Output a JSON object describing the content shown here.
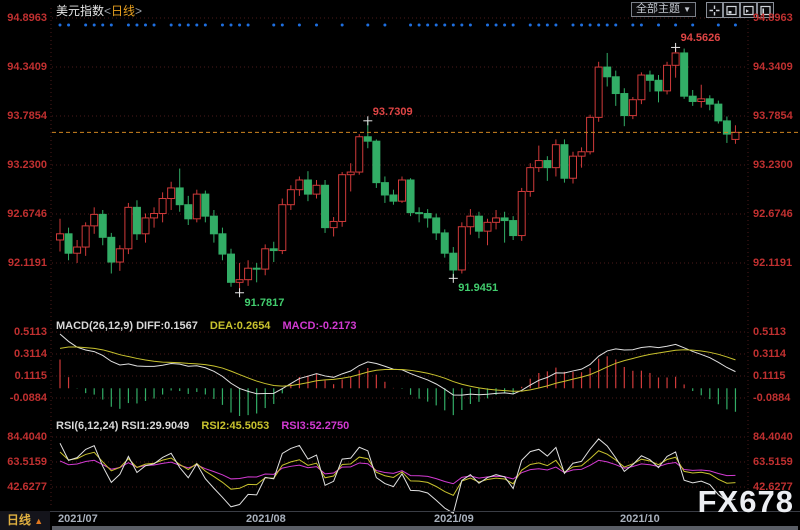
{
  "title": {
    "symbol": "美元指数",
    "bracket_open": "<",
    "period": "日线",
    "bracket_close": ">"
  },
  "toolbar": {
    "theme_label": "全部主题",
    "caret": "▼"
  },
  "macd_header": {
    "left": "MACD(26,12,9) DIFF:0.1567",
    "dea": "DEA:0.2654",
    "macd": "MACD:-0.2173"
  },
  "rsi_header": {
    "left": "RSI(6,12,24) RSI1:29.9049",
    "rsi2": "RSI2:45.5053",
    "rsi3": "RSI3:52.2750"
  },
  "bottom": {
    "tab": "日线",
    "tab_arrow": "▲",
    "dates": [
      "2021/07",
      "2021/08",
      "2021/09",
      "2021/10"
    ]
  },
  "watermark": "FX678",
  "colors": {
    "up": "#d03a3a",
    "down": "#32ad66",
    "axis_red": "#c03030",
    "grid": "#4b1a1a",
    "annotation_up": "#e04545",
    "annotation_down": "#42cd6e",
    "white_line": "#e0e0e0",
    "yellow_line": "#c8c22e",
    "magenta_line": "#d23ad2",
    "last_price_line": "#cd8420",
    "event_dot": "#1e6fe0",
    "cross": "#e8e8e8"
  },
  "chart_data": {
    "type": "candlestick",
    "symbol": "美元指数",
    "period": "日线",
    "title": "美元指数<日线>",
    "price_axis_labels": [
      "94.8963",
      "94.3409",
      "93.7854",
      "93.2300",
      "92.6746",
      "92.1191"
    ],
    "macd_axis_labels": [
      "0.5113",
      "0.3114",
      "0.1115",
      "-0.0884"
    ],
    "rsi_axis_labels": [
      "84.4040",
      "63.5159",
      "42.6277"
    ],
    "last_price": 93.6,
    "indicator_params": {
      "macd": [
        26,
        12,
        9
      ],
      "rsi": [
        6,
        12,
        24
      ]
    },
    "indicator_display": {
      "diff": 0.1567,
      "dea": 0.2654,
      "macd": -0.2173,
      "rsi1": 29.9049,
      "rsi2": 45.5053,
      "rsi3": 52.275
    },
    "annotations": [
      {
        "index": 21,
        "kind": "low",
        "label": "91.7817",
        "price": 91.7817
      },
      {
        "index": 36,
        "kind": "high",
        "label": "93.7309",
        "price": 93.7309
      },
      {
        "index": 46,
        "kind": "low",
        "label": "91.9451",
        "price": 91.9451
      },
      {
        "index": 72,
        "kind": "high",
        "label": "94.5626",
        "price": 94.5626
      }
    ],
    "months": [
      {
        "label": "2021/07",
        "index": 0
      },
      {
        "label": "2021/08",
        "index": 22
      },
      {
        "label": "2021/09",
        "index": 44
      },
      {
        "label": "2021/10",
        "index": 66
      }
    ],
    "event_dot_indices": [
      0,
      1,
      3,
      4,
      5,
      6,
      8,
      9,
      10,
      11,
      13,
      14,
      15,
      16,
      17,
      19,
      20,
      21,
      22,
      25,
      26,
      28,
      30,
      33,
      36,
      38,
      41,
      42,
      43,
      44,
      45,
      46,
      47,
      48,
      50,
      51,
      52,
      53,
      55,
      56,
      57,
      58,
      60,
      61,
      62,
      63,
      64,
      65,
      67,
      68,
      70,
      72,
      74,
      77,
      79
    ],
    "candles": [
      [
        92.38,
        92.62,
        92.25,
        92.45
      ],
      [
        92.45,
        92.52,
        92.15,
        92.23
      ],
      [
        92.23,
        92.38,
        92.12,
        92.3
      ],
      [
        92.3,
        92.58,
        92.2,
        92.54
      ],
      [
        92.54,
        92.75,
        92.45,
        92.67
      ],
      [
        92.67,
        92.72,
        92.32,
        92.41
      ],
      [
        92.41,
        92.46,
        92.0,
        92.13
      ],
      [
        92.13,
        92.32,
        92.03,
        92.28
      ],
      [
        92.28,
        92.8,
        92.22,
        92.75
      ],
      [
        92.75,
        92.83,
        92.38,
        92.45
      ],
      [
        92.45,
        92.68,
        92.35,
        92.63
      ],
      [
        92.63,
        92.75,
        92.52,
        92.68
      ],
      [
        92.68,
        92.92,
        92.58,
        92.85
      ],
      [
        92.85,
        93.04,
        92.72,
        92.97
      ],
      [
        92.97,
        93.19,
        92.7,
        92.78
      ],
      [
        92.78,
        92.88,
        92.55,
        92.62
      ],
      [
        92.62,
        92.95,
        92.58,
        92.9
      ],
      [
        92.9,
        92.94,
        92.58,
        92.65
      ],
      [
        92.65,
        92.72,
        92.35,
        92.45
      ],
      [
        92.45,
        92.52,
        92.15,
        92.22
      ],
      [
        92.22,
        92.28,
        91.85,
        91.9
      ],
      [
        91.9,
        92.12,
        91.7817,
        91.93
      ],
      [
        91.93,
        92.15,
        91.86,
        92.06
      ],
      [
        92.06,
        92.12,
        91.9,
        92.05
      ],
      [
        92.05,
        92.33,
        91.98,
        92.28
      ],
      [
        92.28,
        92.36,
        92.13,
        92.26
      ],
      [
        92.26,
        92.85,
        92.22,
        92.78
      ],
      [
        92.78,
        93.0,
        92.72,
        92.95
      ],
      [
        92.95,
        93.1,
        92.88,
        93.06
      ],
      [
        93.06,
        93.16,
        92.82,
        92.9
      ],
      [
        92.9,
        93.06,
        92.85,
        93.0
      ],
      [
        93.0,
        93.06,
        92.46,
        92.52
      ],
      [
        92.52,
        92.64,
        92.42,
        92.59
      ],
      [
        92.59,
        93.15,
        92.53,
        93.12
      ],
      [
        93.12,
        93.25,
        92.93,
        93.15
      ],
      [
        93.15,
        93.58,
        93.12,
        93.55
      ],
      [
        93.55,
        93.7309,
        93.42,
        93.5
      ],
      [
        93.5,
        93.52,
        92.97,
        93.03
      ],
      [
        93.03,
        93.1,
        92.8,
        92.89
      ],
      [
        92.89,
        92.95,
        92.78,
        92.82
      ],
      [
        92.82,
        93.1,
        92.8,
        93.06
      ],
      [
        93.06,
        93.08,
        92.65,
        92.69
      ],
      [
        92.69,
        92.75,
        92.58,
        92.68
      ],
      [
        92.68,
        92.73,
        92.52,
        92.63
      ],
      [
        92.63,
        92.68,
        92.38,
        92.46
      ],
      [
        92.46,
        92.5,
        92.18,
        92.23
      ],
      [
        92.23,
        92.3,
        91.9451,
        92.04
      ],
      [
        92.04,
        92.58,
        92.0,
        92.53
      ],
      [
        92.53,
        92.73,
        92.44,
        92.65
      ],
      [
        92.65,
        92.7,
        92.4,
        92.48
      ],
      [
        92.48,
        92.62,
        92.32,
        92.58
      ],
      [
        92.58,
        92.72,
        92.5,
        92.63
      ],
      [
        92.63,
        92.7,
        92.35,
        92.6
      ],
      [
        92.6,
        92.65,
        92.38,
        92.43
      ],
      [
        92.43,
        92.97,
        92.37,
        92.93
      ],
      [
        92.93,
        93.25,
        92.87,
        93.2
      ],
      [
        93.2,
        93.45,
        93.15,
        93.28
      ],
      [
        93.28,
        93.33,
        93.05,
        93.2
      ],
      [
        93.2,
        93.52,
        93.1,
        93.46
      ],
      [
        93.46,
        93.52,
        93.03,
        93.08
      ],
      [
        93.08,
        93.38,
        93.02,
        93.33
      ],
      [
        93.33,
        93.43,
        93.2,
        93.38
      ],
      [
        93.38,
        93.8,
        93.35,
        93.77
      ],
      [
        93.77,
        94.4,
        93.72,
        94.34
      ],
      [
        94.34,
        94.5,
        94.12,
        94.23
      ],
      [
        94.23,
        94.3,
        93.9,
        94.04
      ],
      [
        94.04,
        94.1,
        93.67,
        93.79
      ],
      [
        93.79,
        94.0,
        93.75,
        93.97
      ],
      [
        93.97,
        94.28,
        93.92,
        94.25
      ],
      [
        94.25,
        94.3,
        94.06,
        94.19
      ],
      [
        94.19,
        94.25,
        93.94,
        94.07
      ],
      [
        94.07,
        94.4,
        94.03,
        94.36
      ],
      [
        94.36,
        94.5626,
        94.22,
        94.5
      ],
      [
        94.5,
        94.55,
        93.98,
        94.01
      ],
      [
        94.01,
        94.08,
        93.9,
        93.95
      ],
      [
        93.95,
        94.14,
        93.88,
        93.98
      ],
      [
        93.98,
        94.02,
        93.85,
        93.92
      ],
      [
        93.92,
        93.96,
        93.7,
        93.73
      ],
      [
        93.73,
        93.78,
        93.48,
        93.58
      ],
      [
        93.52,
        93.68,
        93.47,
        93.6
      ]
    ]
  }
}
